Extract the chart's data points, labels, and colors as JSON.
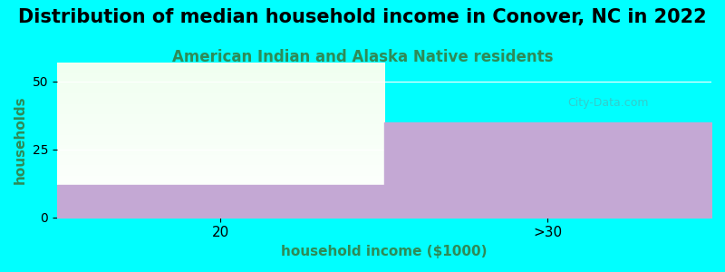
{
  "title": "Distribution of median household income in Conover, NC in 2022",
  "subtitle": "American Indian and Alaska Native residents",
  "xlabel": "household income ($1000)",
  "ylabel": "households",
  "categories": [
    "20",
    ">30"
  ],
  "values": [
    12,
    35
  ],
  "ylim": [
    0,
    57
  ],
  "yticks": [
    0,
    25,
    50
  ],
  "bar_color": "#c4a8d4",
  "bg_color": "#00ffff",
  "plot_bg_top": "#f0fff0",
  "plot_bg_bottom": "#ffffff",
  "watermark": "City-Data.com",
  "title_fontsize": 15,
  "subtitle_fontsize": 12,
  "subtitle_color": "#2e8b57",
  "ylabel_color": "#2e8b57",
  "xlabel_color": "#2e8b57"
}
